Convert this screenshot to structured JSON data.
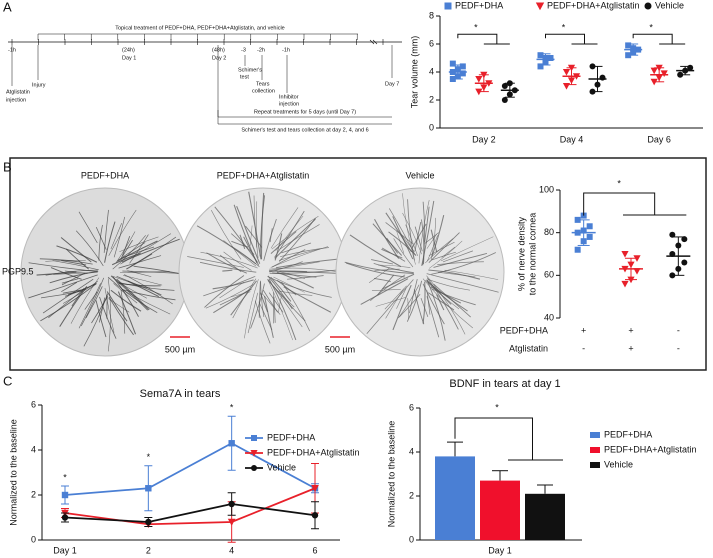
{
  "panel_labels": [
    "A",
    "B",
    "C"
  ],
  "timeline": {
    "labels": [
      "Topical treatment of PEDF+DHA, PEDF+DHA+Atglistatin, and vehicle",
      "-1h",
      "Atglistatin",
      "injection",
      "Injury",
      "(24h)",
      "Day 1",
      "(48h)",
      "Day 2",
      "-3",
      "Schimer's",
      "test",
      "-2h",
      "Tears",
      "collection",
      "-1h",
      "Inhibitor",
      "injection",
      "Day 7",
      "Repeat treatments for 5 days (until Day 7)",
      "Schimer's test and tears collection at day 2, 4, and 6"
    ]
  },
  "images": {
    "titles": [
      "PEDF+DHA",
      "PEDF+DHA+Atglistatin",
      "Vehicle"
    ],
    "stain": "PGP9.5",
    "scale_bars": [
      "500 µm",
      "500 µm"
    ]
  },
  "chart_data": [
    {
      "type": "dot",
      "y_label": "Tear volume (mm)",
      "categories": [
        "Day 2",
        "Day 4",
        "Day 6"
      ],
      "ylim": [
        0,
        8
      ],
      "yticks": [
        0,
        2,
        4,
        6,
        8
      ],
      "series": [
        {
          "name": "PEDF+DHA",
          "color": "#4a7fd4",
          "marker": "square",
          "values": [
            4.0,
            4.9,
            5.6
          ],
          "errors": [
            0.5,
            0.4,
            0.4
          ],
          "points": [
            [
              3.5,
              3.7,
              3.9,
              4.0,
              4.2,
              4.4,
              4.6
            ],
            [
              4.4,
              4.7,
              5.0,
              5.2,
              5.0
            ],
            [
              5.2,
              5.4,
              5.6,
              5.9,
              5.7
            ]
          ]
        },
        {
          "name": "PEDF+DHA+Atglistatin",
          "color": "#e8202a",
          "marker": "triangle",
          "values": [
            3.2,
            3.7,
            3.8
          ],
          "errors": [
            0.6,
            0.6,
            0.5
          ],
          "points": [
            [
              2.6,
              2.9,
              3.2,
              3.5,
              3.8
            ],
            [
              3.0,
              3.4,
              3.7,
              4.0,
              4.3
            ],
            [
              3.3,
              3.6,
              3.9,
              4.1,
              4.3
            ]
          ]
        },
        {
          "name": "Vehicle",
          "color": "#111111",
          "marker": "circle",
          "values": [
            2.7,
            3.5,
            4.1
          ],
          "errors": [
            0.5,
            0.9,
            0.3
          ],
          "points": [
            [
              2.0,
              2.4,
              2.7,
              3.0,
              3.2
            ],
            [
              2.6,
              3.1,
              3.6,
              4.4
            ],
            [
              3.8,
              4.1,
              4.3
            ]
          ]
        }
      ],
      "annotations": [
        "*",
        "*",
        "*"
      ]
    },
    {
      "type": "dot-groups",
      "y_label": [
        "% of nerve density",
        "to the normal cornea"
      ],
      "ylim": [
        40,
        100
      ],
      "yticks": [
        40,
        60,
        80,
        100
      ],
      "values": [
        80,
        63,
        69
      ],
      "errors": [
        6,
        5,
        9
      ],
      "colors": [
        "#4a7fd4",
        "#e8202a",
        "#111111"
      ],
      "markers": [
        "square",
        "triangle",
        "circle"
      ],
      "points": [
        [
          72,
          76,
          78,
          80,
          81,
          83,
          86,
          88
        ],
        [
          56,
          58,
          62,
          63,
          65,
          68,
          70
        ],
        [
          60,
          63,
          66,
          70,
          74,
          77,
          79
        ]
      ],
      "rows": [
        {
          "label": "PEDF+DHA",
          "signs": [
            "+",
            "+",
            "-"
          ]
        },
        {
          "label": "Atglistatin",
          "signs": [
            "-",
            "+",
            "-"
          ]
        }
      ],
      "annotations": [
        "*"
      ]
    },
    {
      "type": "line",
      "title": "Sema7A in tears",
      "y_label": "Normalized to the baseline",
      "categories": [
        "Day 1",
        "2",
        "4",
        "6"
      ],
      "ylim": [
        0,
        6
      ],
      "yticks": [
        0,
        2,
        4,
        6
      ],
      "series": [
        {
          "name": "PEDF+DHA",
          "color": "#4a7fd4",
          "marker": "square",
          "values": [
            2.0,
            2.3,
            4.3,
            2.3
          ],
          "errors": [
            0.4,
            1.0,
            1.2,
            0.2
          ]
        },
        {
          "name": "PEDF+DHA+Atglistatin",
          "color": "#e8202a",
          "marker": "triangle",
          "values": [
            1.2,
            0.7,
            0.8,
            2.3
          ],
          "errors": [
            0.2,
            0.1,
            0.9,
            1.1
          ]
        },
        {
          "name": "Vehicle",
          "color": "#111111",
          "marker": "circle",
          "values": [
            1.0,
            0.8,
            1.6,
            1.1
          ],
          "errors": [
            0.2,
            0.2,
            0.5,
            0.6
          ]
        }
      ],
      "annotations": [
        "*",
        "*",
        "*"
      ]
    },
    {
      "type": "bar",
      "title": "BDNF in tears at day 1",
      "y_label": "Normalized to the baseline",
      "categories": [
        "Day 1"
      ],
      "ylim": [
        0,
        6
      ],
      "yticks": [
        0,
        2,
        4,
        6
      ],
      "series": [
        {
          "name": "PEDF+DHA",
          "color": "#4a7fd4",
          "values": [
            3.8
          ],
          "errors": [
            0.65
          ]
        },
        {
          "name": "PEDF+DHA+Atglistatin",
          "color": "#f0102c",
          "values": [
            2.7
          ],
          "errors": [
            0.45
          ]
        },
        {
          "name": "Vehicle",
          "color": "#111111",
          "values": [
            2.1
          ],
          "errors": [
            0.4
          ]
        }
      ],
      "annotations": [
        "*"
      ]
    }
  ]
}
